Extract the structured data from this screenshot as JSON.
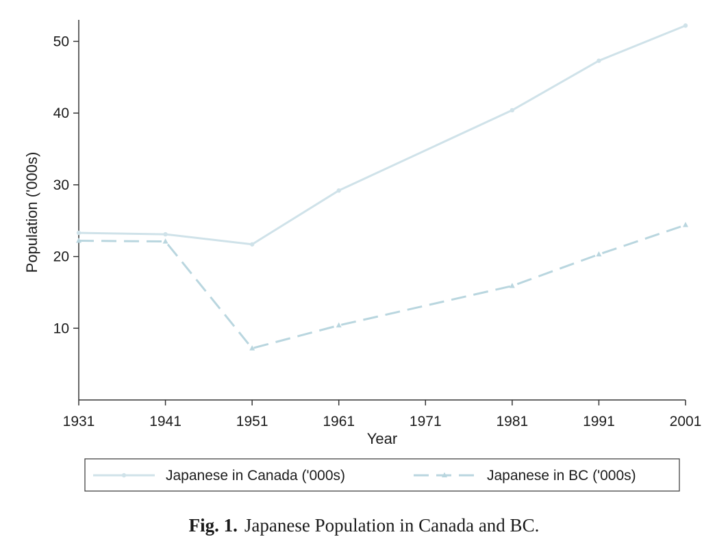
{
  "chart_data": {
    "type": "line",
    "x": [
      1931,
      1941,
      1951,
      1961,
      1971,
      1981,
      1991,
      2001
    ],
    "series": [
      {
        "name": "Japanese in Canada ('000s)",
        "values": [
          23.3,
          23.1,
          21.7,
          29.2,
          null,
          40.4,
          47.3,
          52.2
        ],
        "color": "#cfe2e9",
        "dash": "solid",
        "marker": "circle"
      },
      {
        "name": "Japanese in BC ('000s)",
        "values": [
          22.2,
          22.1,
          7.2,
          10.4,
          null,
          15.9,
          20.3,
          24.4
        ],
        "color": "#b9d6df",
        "dash": "dashed",
        "marker": "triangle"
      }
    ],
    "xlabel": "Year",
    "ylabel": "Population ('000s)",
    "xticks": [
      "1931",
      "1941",
      "1951",
      "1961",
      "1971",
      "1981",
      "1991",
      "2001"
    ],
    "yticks": [
      "10",
      "20",
      "30",
      "40",
      "50"
    ],
    "xlim": [
      1931,
      2001
    ],
    "ylim": [
      0,
      53
    ],
    "grid": false,
    "legend_position": "bottom"
  },
  "caption": {
    "label": "Fig. 1.",
    "text": "Japanese Population in Canada and BC."
  }
}
